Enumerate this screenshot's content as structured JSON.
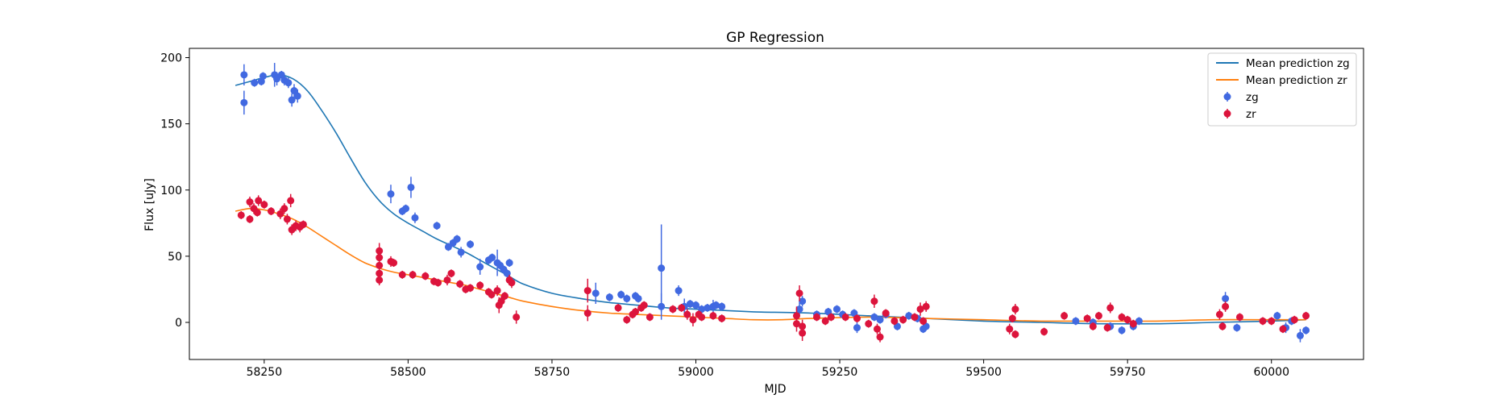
{
  "chart_data": {
    "type": "scatter",
    "title": "GP Regression",
    "xlabel": "MJD",
    "ylabel": "Flux [uJy]",
    "xlim": [
      58120,
      60160
    ],
    "ylim": [
      -28,
      207
    ],
    "xticks": [
      58250,
      58500,
      58750,
      59000,
      59250,
      59500,
      59750,
      60000
    ],
    "yticks": [
      0,
      50,
      100,
      150,
      200
    ],
    "grid": false,
    "legend_position": "top-right",
    "colors": {
      "line_zg": "#1f77b4",
      "line_zr": "#ff7f0e",
      "points_zg": "#4169e1",
      "points_zr": "#dc143c"
    },
    "lines": [
      {
        "name": "Mean prediction zg",
        "color": "#1f77b4",
        "x": [
          58200,
          58225,
          58250,
          58275,
          58300,
          58325,
          58350,
          58375,
          58400,
          58425,
          58450,
          58475,
          58500,
          58525,
          58550,
          58575,
          58600,
          58625,
          58650,
          58675,
          58700,
          58750,
          58800,
          58850,
          58900,
          58950,
          59000,
          59050,
          59100,
          59200,
          59300,
          59400,
          59500,
          59600,
          59700,
          59800,
          59900,
          60000,
          60060
        ],
        "y": [
          179,
          182,
          185,
          187,
          184,
          175,
          160,
          143,
          124,
          106,
          92,
          82,
          75,
          69,
          63,
          58,
          53,
          47,
          41,
          35,
          29,
          22,
          18,
          15,
          13,
          11,
          10,
          9,
          8,
          7,
          5,
          3,
          1,
          0,
          -1,
          -1,
          0,
          1,
          2
        ]
      },
      {
        "name": "Mean prediction zr",
        "color": "#ff7f0e",
        "x": [
          58200,
          58225,
          58250,
          58275,
          58300,
          58325,
          58350,
          58375,
          58400,
          58425,
          58450,
          58475,
          58500,
          58525,
          58550,
          58575,
          58600,
          58625,
          58650,
          58675,
          58700,
          58750,
          58800,
          58850,
          58900,
          58950,
          59000,
          59050,
          59100,
          59150,
          59200,
          59300,
          59400,
          59500,
          59600,
          59700,
          59800,
          59900,
          60000,
          60060
        ],
        "y": [
          84,
          86,
          85,
          82,
          78,
          72,
          65,
          58,
          51,
          45,
          41,
          38,
          36,
          34,
          32,
          30,
          28,
          25,
          22,
          19,
          16,
          12,
          9,
          7,
          6,
          5,
          4,
          3,
          2,
          2,
          3,
          4,
          3,
          2,
          1,
          1,
          1,
          2,
          2,
          2
        ]
      }
    ],
    "series": [
      {
        "name": "zg",
        "color": "#4169e1",
        "points": [
          [
            58215,
            187,
            8
          ],
          [
            58215,
            166,
            9
          ],
          [
            58233,
            181,
            3
          ],
          [
            58245,
            182,
            3
          ],
          [
            58248,
            186,
            3
          ],
          [
            58268,
            187,
            9
          ],
          [
            58272,
            184,
            5
          ],
          [
            58280,
            187,
            3
          ],
          [
            58285,
            183,
            4
          ],
          [
            58292,
            181,
            4
          ],
          [
            58298,
            168,
            5
          ],
          [
            58302,
            175,
            5
          ],
          [
            58308,
            171,
            5
          ],
          [
            58470,
            97,
            7
          ],
          [
            58490,
            84,
            3
          ],
          [
            58496,
            86,
            3
          ],
          [
            58505,
            102,
            8
          ],
          [
            58512,
            79,
            4
          ],
          [
            58550,
            73,
            3
          ],
          [
            58570,
            57,
            3
          ],
          [
            58578,
            60,
            3
          ],
          [
            58585,
            63,
            3
          ],
          [
            58592,
            53,
            4
          ],
          [
            58608,
            59,
            3
          ],
          [
            58625,
            42,
            6
          ],
          [
            58640,
            47,
            3
          ],
          [
            58646,
            49,
            3
          ],
          [
            58655,
            45,
            10
          ],
          [
            58660,
            43,
            3
          ],
          [
            58666,
            40,
            3
          ],
          [
            58676,
            45,
            3
          ],
          [
            58672,
            37,
            3
          ],
          [
            58826,
            22,
            8
          ],
          [
            58850,
            19,
            3
          ],
          [
            58870,
            21,
            3
          ],
          [
            58880,
            18,
            3
          ],
          [
            58895,
            20,
            3
          ],
          [
            58900,
            18,
            3
          ],
          [
            58940,
            41,
            33
          ],
          [
            58940,
            12,
            10
          ],
          [
            58970,
            24,
            4
          ],
          [
            58980,
            12,
            6
          ],
          [
            58990,
            14,
            3
          ],
          [
            59000,
            13,
            3
          ],
          [
            59010,
            10,
            3
          ],
          [
            59020,
            11,
            3
          ],
          [
            59030,
            12,
            5
          ],
          [
            59035,
            13,
            3
          ],
          [
            59045,
            12,
            3
          ],
          [
            59180,
            10,
            5
          ],
          [
            59185,
            16,
            4
          ],
          [
            59210,
            6,
            3
          ],
          [
            59230,
            8,
            3
          ],
          [
            59245,
            10,
            3
          ],
          [
            59255,
            6,
            3
          ],
          [
            59275,
            7,
            3
          ],
          [
            59280,
            -4,
            4
          ],
          [
            59310,
            4,
            3
          ],
          [
            59320,
            2,
            3
          ],
          [
            59330,
            6,
            3
          ],
          [
            59350,
            -3,
            3
          ],
          [
            59370,
            5,
            3
          ],
          [
            59385,
            3,
            3
          ],
          [
            59395,
            -5,
            3
          ],
          [
            59400,
            -3,
            3
          ],
          [
            59660,
            1,
            3
          ],
          [
            59690,
            0,
            3
          ],
          [
            59720,
            -3,
            3
          ],
          [
            59740,
            -6,
            3
          ],
          [
            59760,
            -3,
            3
          ],
          [
            59770,
            1,
            3
          ],
          [
            59920,
            18,
            5
          ],
          [
            59940,
            -4,
            3
          ],
          [
            60010,
            5,
            3
          ],
          [
            60025,
            -4,
            4
          ],
          [
            60050,
            -10,
            5
          ],
          [
            60035,
            1,
            3
          ],
          [
            60060,
            -6,
            3
          ]
        ]
      },
      {
        "name": "zr",
        "color": "#dc143c",
        "points": [
          [
            58210,
            81,
            3
          ],
          [
            58225,
            91,
            4
          ],
          [
            58225,
            78,
            3
          ],
          [
            58232,
            86,
            4
          ],
          [
            58238,
            83,
            3
          ],
          [
            58240,
            92,
            4
          ],
          [
            58250,
            89,
            3
          ],
          [
            58262,
            84,
            3
          ],
          [
            58278,
            82,
            4
          ],
          [
            58285,
            86,
            4
          ],
          [
            58290,
            78,
            4
          ],
          [
            58296,
            92,
            5
          ],
          [
            58298,
            70,
            4
          ],
          [
            58305,
            73,
            4
          ],
          [
            58312,
            72,
            4
          ],
          [
            58318,
            74,
            3
          ],
          [
            58450,
            54,
            6
          ],
          [
            58450,
            49,
            5
          ],
          [
            58450,
            43,
            5
          ],
          [
            58450,
            37,
            4
          ],
          [
            58450,
            32,
            4
          ],
          [
            58470,
            46,
            4
          ],
          [
            58475,
            45,
            3
          ],
          [
            58490,
            36,
            3
          ],
          [
            58508,
            36,
            3
          ],
          [
            58530,
            35,
            3
          ],
          [
            58545,
            31,
            3
          ],
          [
            58552,
            30,
            3
          ],
          [
            58568,
            32,
            4
          ],
          [
            58575,
            37,
            3
          ],
          [
            58590,
            29,
            3
          ],
          [
            58600,
            25,
            3
          ],
          [
            58608,
            26,
            3
          ],
          [
            58625,
            28,
            3
          ],
          [
            58640,
            23,
            3
          ],
          [
            58645,
            21,
            3
          ],
          [
            58655,
            24,
            4
          ],
          [
            58658,
            13,
            6
          ],
          [
            58662,
            16,
            4
          ],
          [
            58668,
            20,
            3
          ],
          [
            58676,
            32,
            4
          ],
          [
            58680,
            30,
            4
          ],
          [
            58688,
            4,
            5
          ],
          [
            58812,
            24,
            9
          ],
          [
            58812,
            7,
            6
          ],
          [
            58865,
            11,
            3
          ],
          [
            58880,
            2,
            3
          ],
          [
            58890,
            6,
            3
          ],
          [
            58895,
            8,
            3
          ],
          [
            58905,
            11,
            3
          ],
          [
            58910,
            13,
            3
          ],
          [
            58920,
            4,
            3
          ],
          [
            58960,
            10,
            3
          ],
          [
            58975,
            11,
            3
          ],
          [
            58985,
            6,
            4
          ],
          [
            58995,
            2,
            5
          ],
          [
            59005,
            6,
            3
          ],
          [
            59010,
            4,
            3
          ],
          [
            59030,
            5,
            3
          ],
          [
            59045,
            3,
            3
          ],
          [
            59175,
            5,
            7
          ],
          [
            59175,
            -1,
            6
          ],
          [
            59180,
            22,
            6
          ],
          [
            59185,
            -8,
            6
          ],
          [
            59185,
            -3,
            5
          ],
          [
            59210,
            4,
            3
          ],
          [
            59225,
            1,
            3
          ],
          [
            59235,
            4,
            3
          ],
          [
            59260,
            4,
            3
          ],
          [
            59280,
            3,
            3
          ],
          [
            59300,
            -1,
            3
          ],
          [
            59310,
            16,
            5
          ],
          [
            59315,
            -5,
            4
          ],
          [
            59320,
            -11,
            4
          ],
          [
            59330,
            7,
            3
          ],
          [
            59345,
            1,
            3
          ],
          [
            59360,
            2,
            3
          ],
          [
            59380,
            4,
            3
          ],
          [
            59390,
            10,
            5
          ],
          [
            59395,
            1,
            3
          ],
          [
            59400,
            12,
            4
          ],
          [
            59545,
            -5,
            4
          ],
          [
            59550,
            3,
            3
          ],
          [
            59555,
            10,
            4
          ],
          [
            59555,
            -9,
            3
          ],
          [
            59605,
            -7,
            3
          ],
          [
            59640,
            5,
            3
          ],
          [
            59680,
            3,
            3
          ],
          [
            59690,
            -3,
            3
          ],
          [
            59700,
            5,
            3
          ],
          [
            59715,
            -4,
            3
          ],
          [
            59720,
            11,
            4
          ],
          [
            59740,
            4,
            3
          ],
          [
            59750,
            2,
            3
          ],
          [
            59760,
            -1,
            3
          ],
          [
            59910,
            6,
            4
          ],
          [
            59915,
            -3,
            3
          ],
          [
            59920,
            12,
            4
          ],
          [
            59945,
            4,
            3
          ],
          [
            59985,
            1,
            3
          ],
          [
            60000,
            1,
            3
          ],
          [
            60020,
            -5,
            3
          ],
          [
            60040,
            2,
            3
          ],
          [
            60060,
            5,
            3
          ]
        ]
      }
    ],
    "legend": {
      "entries": [
        "Mean prediction zg",
        "Mean prediction zr",
        "zg",
        "zr"
      ]
    }
  }
}
